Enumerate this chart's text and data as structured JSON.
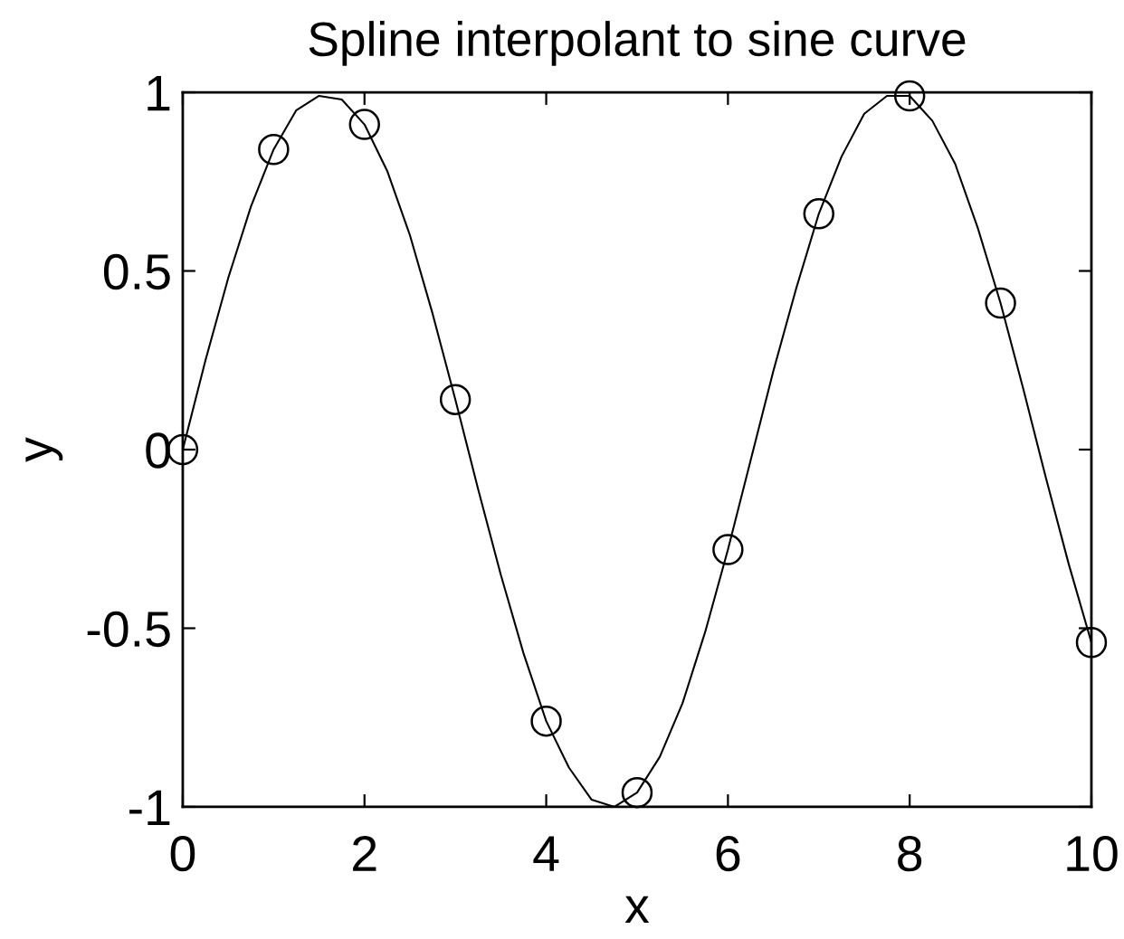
{
  "chart_data": {
    "type": "line",
    "title": "Spline interpolant to sine curve",
    "xlabel": "x",
    "ylabel": "y",
    "xlim": [
      0,
      10
    ],
    "ylim": [
      -1,
      1
    ],
    "xticks": [
      0,
      2,
      4,
      6,
      8,
      10
    ],
    "yticks": [
      -1,
      -0.5,
      0,
      0.5,
      1
    ],
    "series": [
      {
        "type": "scatter",
        "marker": "circle",
        "color": "#000000",
        "x": [
          0,
          1,
          2,
          3,
          4,
          5,
          6,
          7,
          8,
          9,
          10
        ],
        "values": [
          0,
          0.84,
          0.91,
          0.14,
          -0.76,
          -0.96,
          -0.28,
          0.66,
          0.99,
          0.41,
          -0.54
        ]
      },
      {
        "line_style": "solid",
        "color": "#000000",
        "x": [
          0,
          0.25,
          0.5,
          0.75,
          1,
          1.25,
          1.5,
          1.75,
          2,
          2.25,
          2.5,
          2.75,
          3,
          3.25,
          3.5,
          3.75,
          4,
          4.25,
          4.5,
          4.75,
          5,
          5.25,
          5.5,
          5.75,
          6,
          6.25,
          6.5,
          6.75,
          7,
          7.25,
          7.5,
          7.75,
          8,
          8.25,
          8.5,
          8.75,
          9,
          9.25,
          9.5,
          9.75,
          10
        ],
        "values": [
          0,
          0.25,
          0.48,
          0.68,
          0.84,
          0.95,
          0.99,
          0.98,
          0.91,
          0.78,
          0.6,
          0.38,
          0.14,
          -0.11,
          -0.35,
          -0.57,
          -0.76,
          -0.89,
          -0.98,
          -1.0,
          -0.96,
          -0.86,
          -0.71,
          -0.51,
          -0.28,
          -0.03,
          0.22,
          0.45,
          0.66,
          0.82,
          0.94,
          0.99,
          0.99,
          0.92,
          0.8,
          0.62,
          0.41,
          0.17,
          -0.08,
          -0.32,
          -0.54
        ]
      }
    ]
  }
}
